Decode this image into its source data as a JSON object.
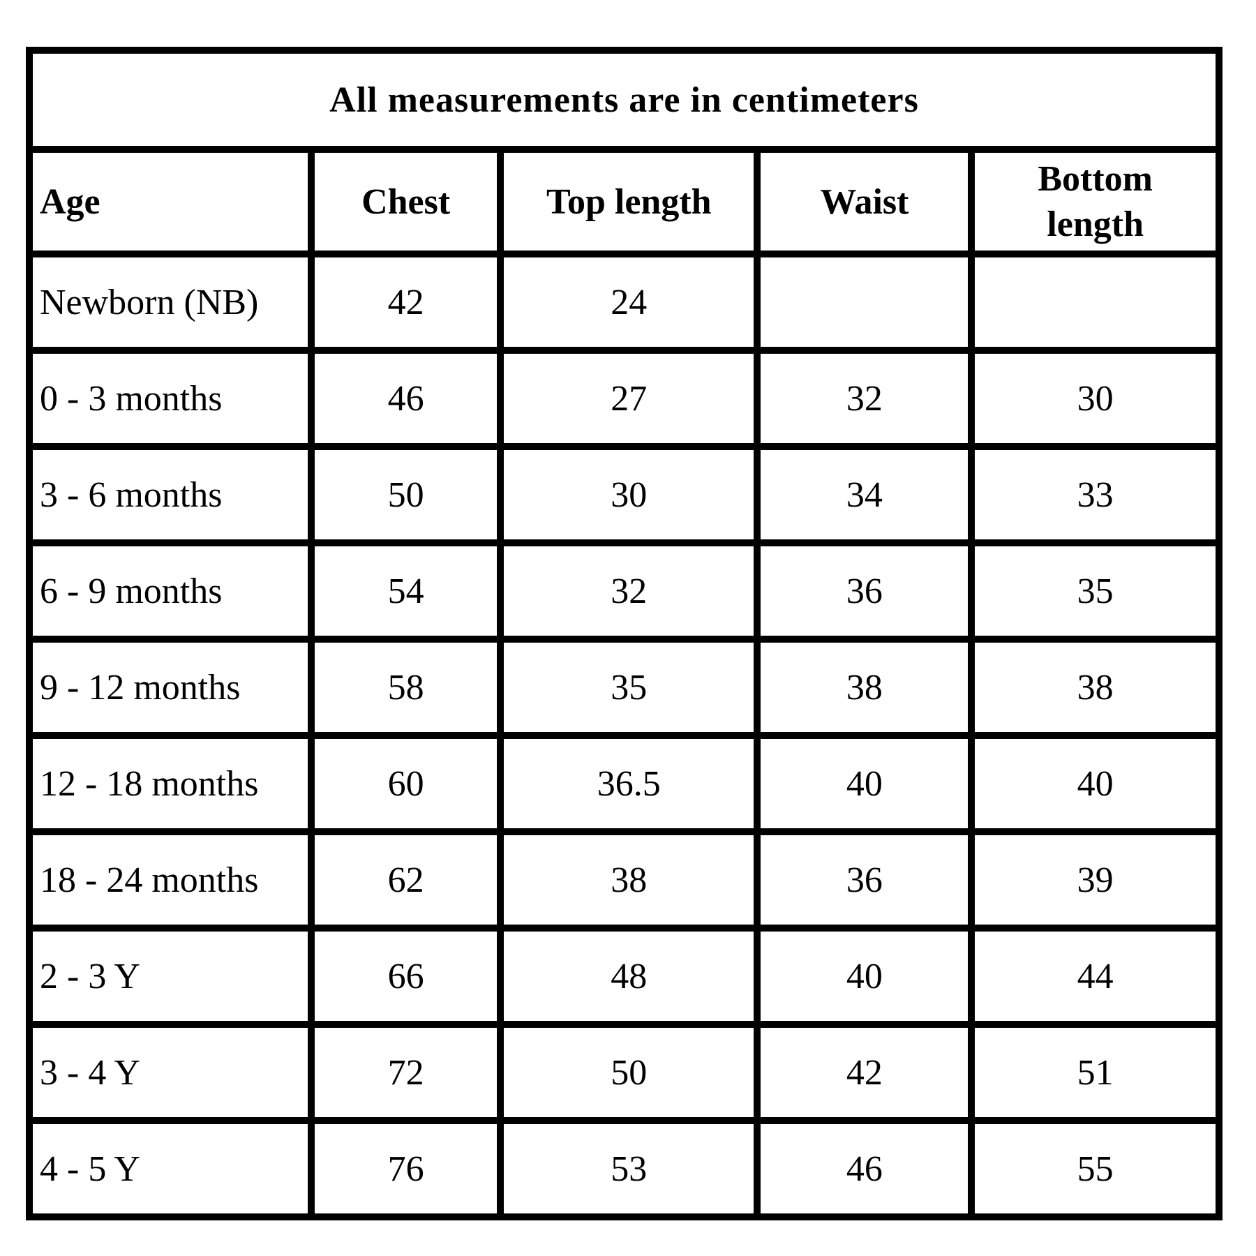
{
  "table": {
    "title": "All measurements are in centimeters",
    "columns": {
      "age": "Age",
      "chest": "Chest",
      "top_length": "Top length",
      "waist": "Waist",
      "bottom_length": "Bottom length"
    },
    "rows": [
      {
        "age": "Newborn (NB)",
        "chest": "42",
        "top_length": "24",
        "waist": "",
        "bottom_length": ""
      },
      {
        "age": "0 - 3 months",
        "chest": "46",
        "top_length": "27",
        "waist": "32",
        "bottom_length": "30"
      },
      {
        "age": "3 - 6 months",
        "chest": "50",
        "top_length": "30",
        "waist": "34",
        "bottom_length": "33"
      },
      {
        "age": "6 - 9 months",
        "chest": "54",
        "top_length": "32",
        "waist": "36",
        "bottom_length": "35"
      },
      {
        "age": "9 - 12 months",
        "chest": "58",
        "top_length": "35",
        "waist": "38",
        "bottom_length": "38"
      },
      {
        "age": "12 - 18 months",
        "chest": "60",
        "top_length": "36.5",
        "waist": "40",
        "bottom_length": "40"
      },
      {
        "age": "18 - 24 months",
        "chest": "62",
        "top_length": "38",
        "waist": "36",
        "bottom_length": "39"
      },
      {
        "age": "2 - 3 Y",
        "chest": "66",
        "top_length": "48",
        "waist": "40",
        "bottom_length": "44"
      },
      {
        "age": "3 - 4 Y",
        "chest": "72",
        "top_length": "50",
        "waist": "42",
        "bottom_length": "51"
      },
      {
        "age": "4 - 5 Y",
        "chest": "76",
        "top_length": "53",
        "waist": "46",
        "bottom_length": "55"
      }
    ],
    "colors": {
      "text": "#000000",
      "border": "#000000",
      "background": "#ffffff"
    }
  }
}
